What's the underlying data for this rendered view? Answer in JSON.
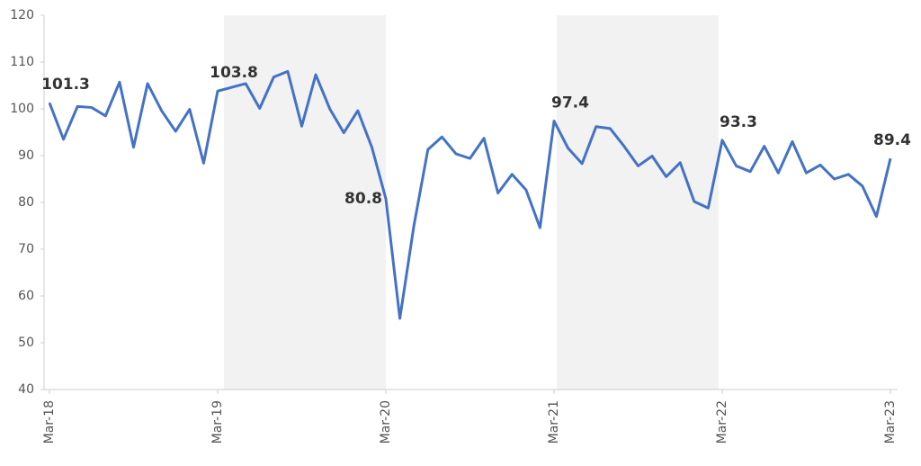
{
  "chart_data": {
    "type": "line",
    "categories": [
      "Mar-18",
      null,
      null,
      null,
      null,
      null,
      null,
      null,
      null,
      null,
      null,
      null,
      "Mar-19",
      null,
      null,
      null,
      null,
      null,
      null,
      null,
      null,
      null,
      null,
      null,
      "Mar-20",
      null,
      null,
      null,
      null,
      null,
      null,
      null,
      null,
      null,
      null,
      null,
      "Mar-21",
      null,
      null,
      null,
      null,
      null,
      null,
      null,
      null,
      null,
      null,
      null,
      "Mar-22",
      null,
      null,
      null,
      null,
      null,
      null,
      null,
      null,
      null,
      null,
      null,
      "Mar-23"
    ],
    "values": [
      101.3,
      93.5,
      100.5,
      100.3,
      98.5,
      105.7,
      91.8,
      105.4,
      99.6,
      95.2,
      99.9,
      88.4,
      103.8,
      104.6,
      105.4,
      100.1,
      106.8,
      108,
      96.3,
      107.3,
      100,
      94.9,
      99.6,
      91.8,
      80.8,
      55.2,
      75,
      91.3,
      94,
      90.4,
      89.4,
      93.7,
      82,
      86,
      82.7,
      74.6,
      97.4,
      91.6,
      88.3,
      96.2,
      95.8,
      92,
      87.8,
      89.9,
      85.5,
      88.5,
      80.2,
      78.8,
      93.3,
      87.8,
      86.6,
      92,
      86.3,
      93,
      86.3,
      88,
      85,
      86,
      83.5,
      77,
      89.4
    ],
    "color": "#4472c4",
    "labeled_points": [
      0,
      12,
      24,
      36,
      48,
      60
    ],
    "ylim": [
      40,
      120
    ],
    "yticks": [
      40,
      50,
      60,
      70,
      80,
      90,
      100,
      110,
      120
    ],
    "grid": false
  }
}
